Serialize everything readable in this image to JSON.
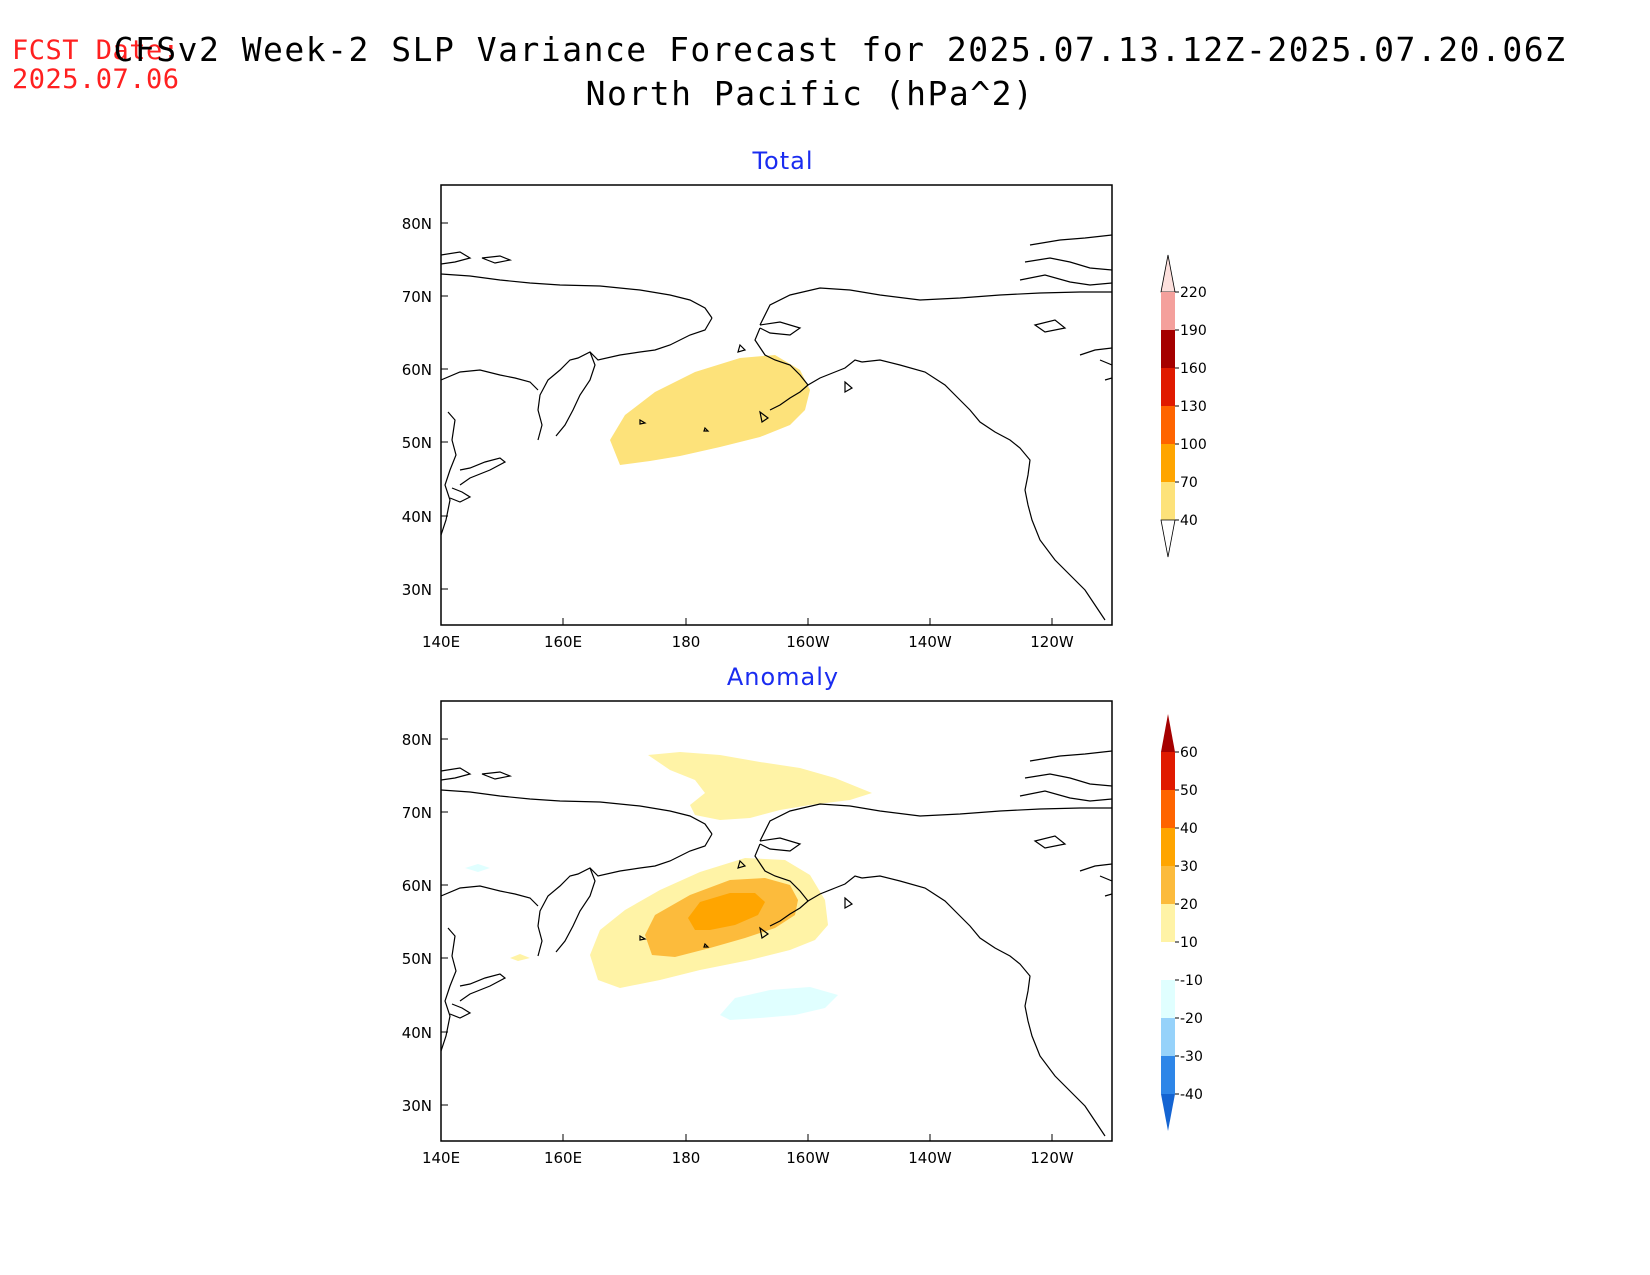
{
  "fcst": {
    "label": "FCST Date:",
    "date": "2025.07.06"
  },
  "title": {
    "line1": "CFSv2 Week-2 SLP Variance Forecast for 2025.07.13.12Z-2025.07.20.06Z",
    "line2": "North Pacific (hPa^2)"
  },
  "colors": {
    "panel_title": "#1a2cf0",
    "fcst": "#ff2020",
    "coast": "#000000"
  },
  "lon_ticks": [
    "140E",
    "160E",
    "180",
    "160W",
    "140W",
    "120W"
  ],
  "lat_ticks": [
    "80N",
    "70N",
    "60N",
    "50N",
    "40N",
    "30N"
  ],
  "panels": [
    {
      "title": "Total",
      "colorbar": {
        "levels": [
          "220",
          "190",
          "160",
          "130",
          "100",
          "70",
          "40"
        ],
        "colors": [
          "#fde0dd",
          "#f4a09c",
          "#a50000",
          "#e01a00",
          "#ff6400",
          "#ffa500",
          "#fde27a"
        ]
      },
      "shading": [
        {
          "range": "40-70",
          "color": "#fde27a"
        }
      ]
    },
    {
      "title": "Anomaly",
      "colorbar": {
        "levels": [
          "60",
          "50",
          "40",
          "30",
          "20",
          "10",
          "-10",
          "-20",
          "-30",
          "-40"
        ],
        "colors": [
          "#a50000",
          "#e01a00",
          "#ff6400",
          "#ffa500",
          "#fcbb3c",
          "#fff3a6",
          "#ffffff",
          "#e0ffff",
          "#96d2fa",
          "#2e86e8",
          "#1464d2"
        ]
      },
      "shading": [
        {
          "range": "10-20",
          "color": "#fff3a6"
        },
        {
          "range": "20-30",
          "color": "#fcbb3c"
        },
        {
          "range": "30-40",
          "color": "#ffa500"
        },
        {
          "range": "-20--10",
          "color": "#e0ffff"
        }
      ]
    }
  ]
}
